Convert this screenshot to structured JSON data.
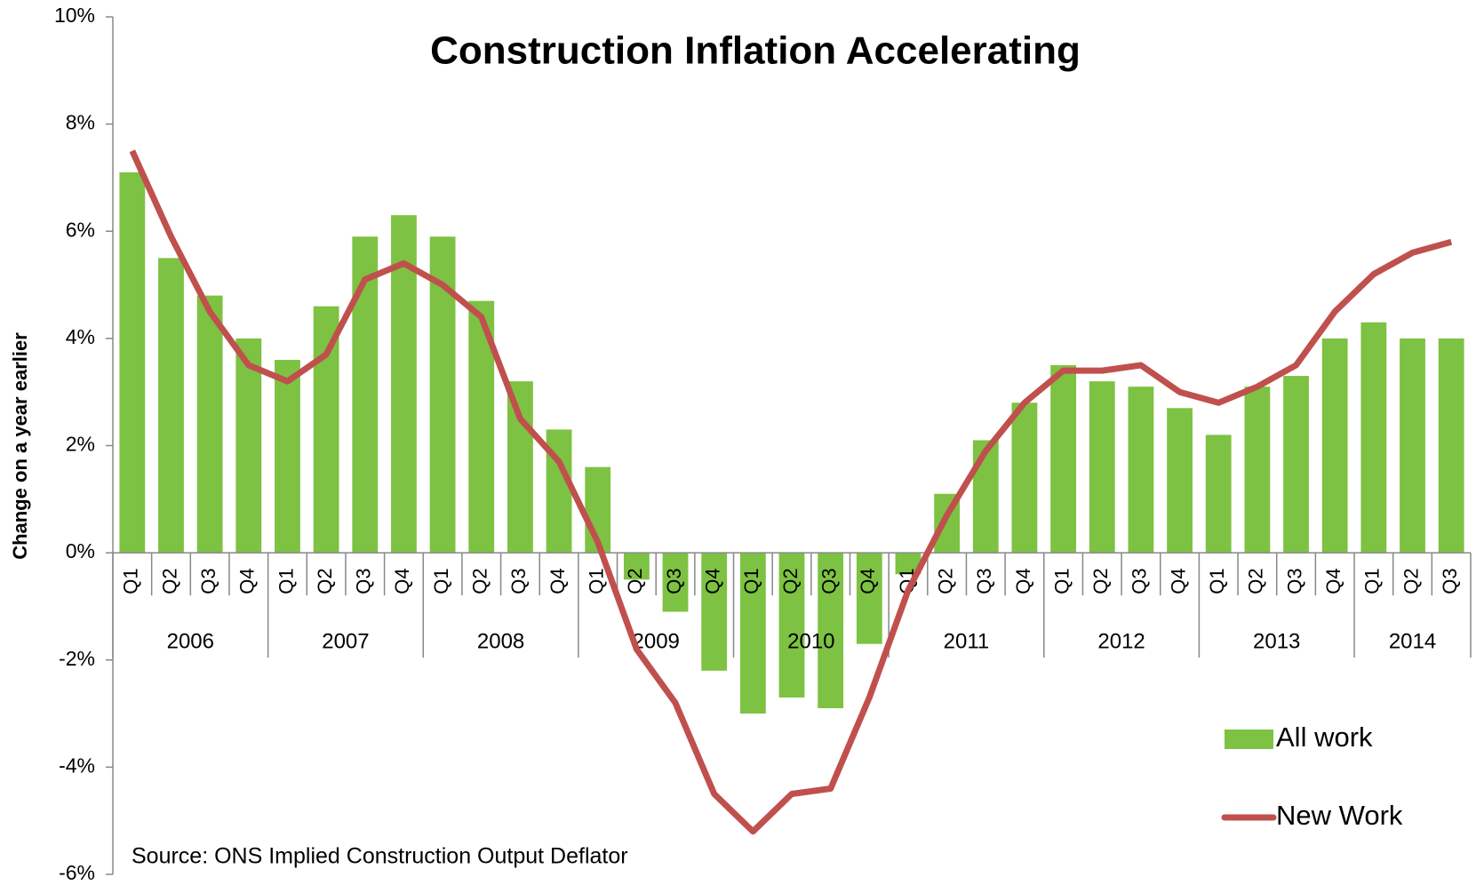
{
  "chart_data": {
    "type": "bar_line",
    "title": "Construction Inflation Accelerating",
    "y_label": "Change on a year earlier",
    "source": "Source: ONS Implied Construction Output Deflator",
    "categories": [
      "Q1",
      "Q2",
      "Q3",
      "Q4",
      "Q1",
      "Q2",
      "Q3",
      "Q4",
      "Q1",
      "Q2",
      "Q3",
      "Q4",
      "Q1",
      "Q2",
      "Q3",
      "Q4",
      "Q1",
      "Q2",
      "Q3",
      "Q4",
      "Q1",
      "Q2",
      "Q3",
      "Q4",
      "Q1",
      "Q2",
      "Q3",
      "Q4",
      "Q1",
      "Q2",
      "Q3",
      "Q4",
      "Q1",
      "Q2",
      "Q3"
    ],
    "years": [
      "2006",
      "2007",
      "2008",
      "2009",
      "2010",
      "2011",
      "2012",
      "2013",
      "2014"
    ],
    "series": [
      {
        "name": "All work",
        "kind": "bar",
        "color": "#7dc242",
        "values": [
          7.1,
          5.5,
          4.8,
          4.0,
          3.6,
          4.6,
          5.9,
          6.3,
          5.9,
          4.7,
          3.2,
          2.3,
          1.6,
          -0.5,
          -1.1,
          -2.2,
          -3.0,
          -2.7,
          -2.9,
          -1.7,
          -0.4,
          1.1,
          2.1,
          2.8,
          3.5,
          3.2,
          3.1,
          2.7,
          2.2,
          3.1,
          3.3,
          4.0,
          4.3,
          4.0,
          4.0
        ]
      },
      {
        "name": "New Work",
        "kind": "line",
        "color": "#c0504d",
        "values": [
          7.5,
          5.9,
          4.5,
          3.5,
          3.2,
          3.7,
          5.1,
          5.4,
          5.0,
          4.4,
          2.5,
          1.7,
          0.2,
          -1.8,
          -2.8,
          -4.5,
          -5.2,
          -4.5,
          -4.4,
          -2.7,
          -0.7,
          0.7,
          1.9,
          2.8,
          3.4,
          3.4,
          3.5,
          3.0,
          2.8,
          3.1,
          3.5,
          4.5,
          5.2,
          5.6,
          5.8
        ]
      }
    ],
    "ylim": [
      -6,
      10
    ],
    "yticks": [
      {
        "value": -6,
        "label": "-6%"
      },
      {
        "value": -4,
        "label": "-4%"
      },
      {
        "value": -2,
        "label": "-2%"
      },
      {
        "value": 0,
        "label": "0%"
      },
      {
        "value": 2,
        "label": "2%"
      },
      {
        "value": 4,
        "label": "4%"
      },
      {
        "value": 6,
        "label": "6%"
      },
      {
        "value": 8,
        "label": "8%"
      },
      {
        "value": 10,
        "label": "10%"
      }
    ],
    "legend": "bottom-right"
  }
}
